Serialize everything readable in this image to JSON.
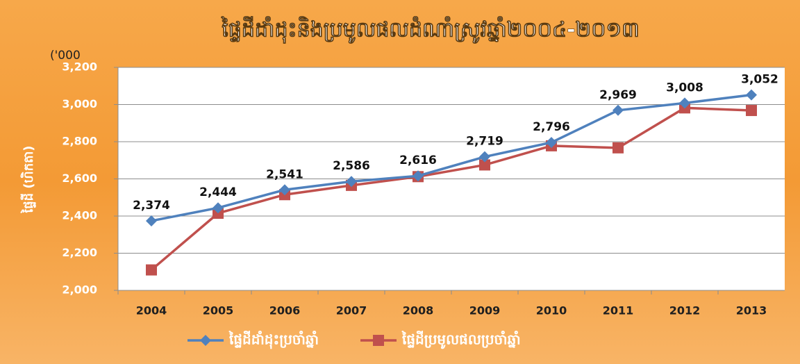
{
  "chart_data": {
    "type": "line",
    "title": "ផ្ទៃដីដាំដុះនិងប្រមូលផលដំណាំស្រូវឆ្នាំ២០០៤-២០១៣",
    "y_unit": "('000",
    "y_label": "ផ្ទៃដី (ហិកតា)",
    "categories": [
      "2004",
      "2005",
      "2006",
      "2007",
      "2008",
      "2009",
      "2010",
      "2011",
      "2012",
      "2013"
    ],
    "series": [
      {
        "name": "ផ្ទៃដីដាំដុះប្រចាំឆ្នាំ",
        "color": "#4f81bd",
        "marker": "diamond",
        "values": [
          2374,
          2444,
          2541,
          2586,
          2616,
          2719,
          2796,
          2969,
          3008,
          3052
        ],
        "value_labels": [
          "2,374",
          "2,444",
          "2,541",
          "2,586",
          "2,616",
          "2,719",
          "2,796",
          "2,969",
          "3,008",
          "3,052"
        ]
      },
      {
        "name": "ផ្ទៃដីប្រមូលផលប្រចាំឆ្នាំ",
        "color": "#c0504d",
        "marker": "square",
        "values": [
          2110,
          2415,
          2515,
          2565,
          2612,
          2675,
          2778,
          2767,
          2982,
          2968
        ]
      }
    ],
    "ylim": [
      2000,
      3200
    ],
    "yticks": [
      {
        "value": 2000,
        "label": "2,000"
      },
      {
        "value": 2200,
        "label": "2,200"
      },
      {
        "value": 2400,
        "label": "2,400"
      },
      {
        "value": 2600,
        "label": "2,600"
      },
      {
        "value": 2800,
        "label": "2,800"
      },
      {
        "value": 3000,
        "label": "3,000"
      },
      {
        "value": 3200,
        "label": "3,200"
      }
    ],
    "grid": true,
    "legend": "bottom"
  }
}
